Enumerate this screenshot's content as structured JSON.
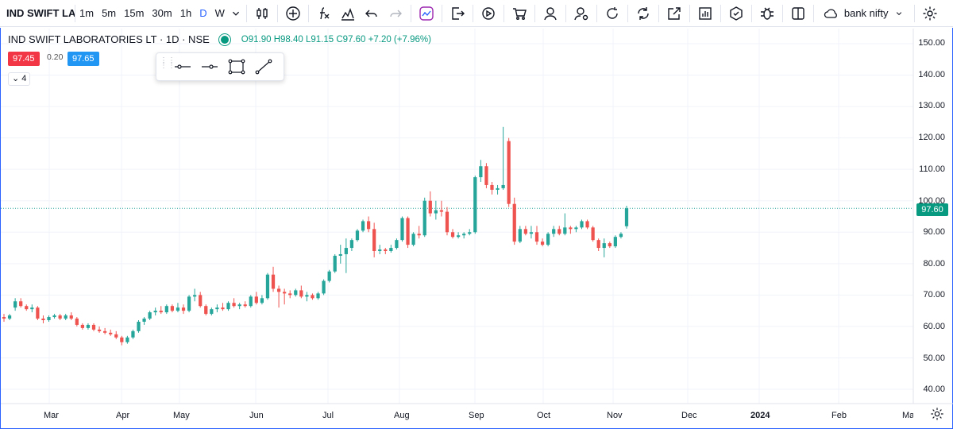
{
  "toolbar": {
    "symbol": "IND SWIFT LA",
    "intervals": [
      "1m",
      "5m",
      "15m",
      "30m",
      "1h",
      "D",
      "W"
    ],
    "active_interval": "D",
    "search_text": "bank nifty"
  },
  "legend": {
    "title": "IND SWIFT LABORATORIES LT · 1D · NSE",
    "ohlc": "O91.90 H98.40 L91.15 C97.60 +7.20 (+7.96%)"
  },
  "trade": {
    "sell": "97.45",
    "spread": "0.20",
    "buy": "97.65"
  },
  "indicators_count": "4",
  "last_price": "97.60",
  "colors": {
    "up": "#26a69a",
    "down": "#ef5350",
    "accent": "#2962ff",
    "sell": "#f23645",
    "buy": "#2196f3"
  },
  "chart_data": {
    "type": "candlestick",
    "y_ticks": [
      "150.00",
      "140.00",
      "130.00",
      "120.00",
      "110.00",
      "100.00",
      "90.00",
      "80.00",
      "70.00",
      "60.00",
      "50.00",
      "40.00"
    ],
    "ylim": [
      37,
      155
    ],
    "x_ticks": [
      "Mar",
      "Apr",
      "May",
      "Jun",
      "Jul",
      "Aug",
      "Sep",
      "Oct",
      "Nov",
      "Dec",
      "2024",
      "Feb",
      "Mar"
    ],
    "x_start": "2023-02-08",
    "last_close": 97.6,
    "candles": [
      [
        63,
        64,
        61.5,
        62.5
      ],
      [
        62.5,
        64,
        62,
        63.5
      ],
      [
        66,
        69,
        65,
        68
      ],
      [
        68,
        69,
        66,
        66.5
      ],
      [
        66.5,
        67,
        65,
        65.5
      ],
      [
        65.5,
        67,
        64.5,
        66
      ],
      [
        66,
        66.5,
        62,
        62.5
      ],
      [
        62.5,
        63.5,
        61,
        62
      ],
      [
        62,
        63.5,
        61.5,
        63
      ],
      [
        63,
        64,
        62.5,
        63.5
      ],
      [
        63.5,
        64,
        62,
        62.5
      ],
      [
        62.5,
        64,
        62,
        63.5
      ],
      [
        63.5,
        64.5,
        62,
        62.5
      ],
      [
        62.5,
        63,
        60,
        60.5
      ],
      [
        60.5,
        61,
        59,
        59.5
      ],
      [
        59.5,
        61,
        59,
        60.5
      ],
      [
        60.5,
        61,
        58.5,
        59
      ],
      [
        59,
        60,
        58,
        58.5
      ],
      [
        58.5,
        59.5,
        57.5,
        58
      ],
      [
        58,
        59,
        57,
        57.5
      ],
      [
        57.5,
        58.5,
        56,
        56.5
      ],
      [
        56.5,
        57,
        54,
        55
      ],
      [
        55,
        57,
        54.5,
        56.5
      ],
      [
        56.5,
        59,
        56,
        58.5
      ],
      [
        58.5,
        62,
        58,
        61.5
      ],
      [
        61.5,
        63,
        60.5,
        62.5
      ],
      [
        62.5,
        65,
        62,
        64.5
      ],
      [
        64.5,
        66,
        63.5,
        65
      ],
      [
        65,
        66.5,
        64,
        64.5
      ],
      [
        64.5,
        67,
        64,
        66.5
      ],
      [
        66.5,
        67,
        64.5,
        65
      ],
      [
        65,
        67.5,
        64.5,
        66
      ],
      [
        66,
        67,
        64,
        65
      ],
      [
        65,
        70,
        64.5,
        69.5
      ],
      [
        69.5,
        72,
        68,
        70
      ],
      [
        70,
        71,
        66,
        66.5
      ],
      [
        66.5,
        67,
        63.5,
        64
      ],
      [
        64,
        66,
        63.5,
        65.5
      ],
      [
        65.5,
        67,
        64.5,
        66
      ],
      [
        66,
        67.5,
        65,
        65.5
      ],
      [
        65.5,
        68,
        65,
        67.5
      ],
      [
        67.5,
        69,
        66,
        66.5
      ],
      [
        66.5,
        67.5,
        65.5,
        67
      ],
      [
        67,
        68,
        66,
        66.5
      ],
      [
        66.5,
        70,
        66,
        69.5
      ],
      [
        69.5,
        71,
        67,
        67.5
      ],
      [
        67.5,
        70,
        67,
        69
      ],
      [
        69,
        77,
        68.5,
        76.5
      ],
      [
        76.5,
        79,
        71,
        72
      ],
      [
        72,
        73,
        66,
        71
      ],
      [
        71,
        72,
        67,
        70.5
      ],
      [
        70.5,
        71.5,
        69,
        70
      ],
      [
        70,
        72,
        69.5,
        71.5
      ],
      [
        71.5,
        73,
        69,
        69.5
      ],
      [
        69.5,
        71,
        68,
        70
      ],
      [
        70,
        70.5,
        68.5,
        69
      ],
      [
        69,
        71,
        68.5,
        70.5
      ],
      [
        70.5,
        75,
        70,
        74.5
      ],
      [
        74.5,
        78,
        74,
        77.5
      ],
      [
        77.5,
        83,
        77,
        82.5
      ],
      [
        82.5,
        86,
        80,
        83
      ],
      [
        83,
        88,
        77,
        85
      ],
      [
        85,
        88,
        84,
        87.5
      ],
      [
        87.5,
        91,
        87,
        90.5
      ],
      [
        90.5,
        94,
        90,
        93.5
      ],
      [
        93.5,
        95,
        90,
        91
      ],
      [
        91,
        93,
        82,
        84
      ],
      [
        84,
        86,
        83,
        84.5
      ],
      [
        84.5,
        85,
        83,
        84
      ],
      [
        84,
        86,
        83.5,
        85
      ],
      [
        85,
        88,
        84.5,
        87.5
      ],
      [
        87.5,
        95,
        87,
        94.5
      ],
      [
        94.5,
        95,
        85,
        86
      ],
      [
        86,
        90,
        85.5,
        89.5
      ],
      [
        89.5,
        92,
        88,
        89
      ],
      [
        89,
        101,
        88.5,
        100
      ],
      [
        100,
        103,
        95,
        96
      ],
      [
        96,
        100,
        94,
        97
      ],
      [
        97,
        100,
        95,
        96.5
      ],
      [
        96.5,
        98,
        89,
        90
      ],
      [
        90,
        91,
        88,
        88.5
      ],
      [
        88.5,
        90,
        88,
        89
      ],
      [
        89,
        90,
        88,
        89.5
      ],
      [
        89.5,
        91,
        89,
        90
      ],
      [
        90,
        108,
        89.5,
        107.5
      ],
      [
        107.5,
        113,
        106,
        111
      ],
      [
        111,
        112,
        104,
        105
      ],
      [
        105,
        106,
        102,
        103.5
      ],
      [
        103.5,
        105,
        102,
        104
      ],
      [
        104,
        123.5,
        103.5,
        105
      ],
      [
        119,
        120,
        98,
        99
      ],
      [
        99,
        101,
        86,
        87
      ],
      [
        87,
        92,
        86.5,
        91
      ],
      [
        91,
        92,
        89,
        89.5
      ],
      [
        89.5,
        92,
        88,
        90
      ],
      [
        90,
        92,
        86,
        87
      ],
      [
        87,
        88,
        85.5,
        86
      ],
      [
        86,
        90,
        85.5,
        89.5
      ],
      [
        89.5,
        92,
        88.5,
        91
      ],
      [
        91,
        92,
        89,
        89.5
      ],
      [
        89.5,
        96,
        89,
        91.5
      ],
      [
        91.5,
        92,
        89.5,
        91
      ],
      [
        91,
        92,
        90,
        91.5
      ],
      [
        91.5,
        94,
        91,
        93.5
      ],
      [
        93.5,
        94,
        91,
        91.5
      ],
      [
        91.5,
        92,
        87,
        87.5
      ],
      [
        87.5,
        88,
        84,
        85
      ],
      [
        85,
        88,
        82,
        86.5
      ],
      [
        86.5,
        87,
        85,
        85.5
      ],
      [
        85.5,
        89,
        85,
        88.5
      ],
      [
        88.5,
        90,
        88,
        89.5
      ],
      [
        91.9,
        98.4,
        91.15,
        97.6
      ]
    ]
  }
}
